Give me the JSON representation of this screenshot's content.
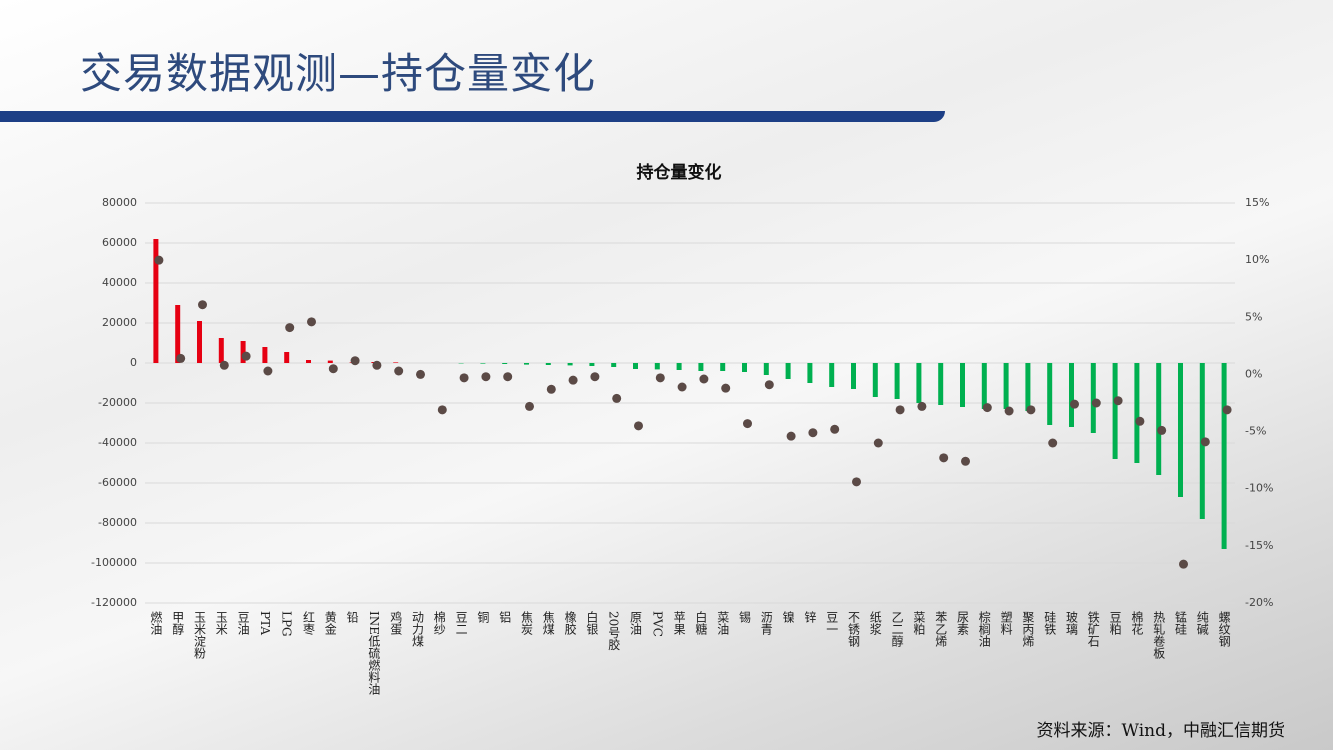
{
  "slide": {
    "title": "交易数据观测—持仓量变化",
    "source": "资料来源：Wind，中融汇信期货"
  },
  "chart_data": {
    "type": "bar",
    "title": "持仓量变化",
    "grid": true,
    "categories": [
      "燃油",
      "甲醇",
      "玉米淀粉",
      "玉米",
      "豆油",
      "PTA",
      "LPG",
      "红枣",
      "黄金",
      "铅",
      "INE低硫燃料油",
      "鸡蛋",
      "动力煤",
      "棉纱",
      "豆二",
      "铜",
      "铝",
      "焦炭",
      "焦煤",
      "橡胶",
      "白银",
      "20号胶",
      "原油",
      "PVC",
      "苹果",
      "白糖",
      "菜油",
      "锡",
      "沥青",
      "镍",
      "锌",
      "豆一",
      "不锈钢",
      "纸浆",
      "乙二醇",
      "菜粕",
      "苯乙烯",
      "尿素",
      "棕榈油",
      "塑料",
      "聚丙烯",
      "硅铁",
      "玻璃",
      "铁矿石",
      "豆粕",
      "棉花",
      "热轧卷板",
      "锰硅",
      "纯碱",
      "螺纹钢"
    ],
    "series": [
      {
        "type": "bar",
        "color": "#e60012",
        "negative_color": "#00b050",
        "values": [
          62000,
          29000,
          21000,
          12500,
          11000,
          8000,
          5500,
          1500,
          1200,
          300,
          500,
          300,
          0,
          0,
          -200,
          -300,
          -500,
          -800,
          -1000,
          -1200,
          -1500,
          -2000,
          -3000,
          -3200,
          -3500,
          -4000,
          -4000,
          -4500,
          -6000,
          -8000,
          -10000,
          -12000,
          -13000,
          -17000,
          -18000,
          -20000,
          -21000,
          -22000,
          -23000,
          -23000,
          -24000,
          -31000,
          -32000,
          -35000,
          -48000,
          -50000,
          -56000,
          -67000,
          -78000,
          -93000
        ]
      },
      {
        "type": "scatter",
        "axis": "y2",
        "color": "#5b4a46",
        "values": [
          10,
          1.4,
          6.1,
          0.8,
          1.6,
          0.3,
          4.1,
          4.6,
          0.5,
          1.2,
          0.8,
          0.3,
          0,
          -3.1,
          -0.3,
          -0.2,
          -0.2,
          -2.8,
          -1.3,
          -0.5,
          -0.2,
          -2.1,
          -4.5,
          -0.3,
          -1.1,
          -0.4,
          -1.2,
          -4.3,
          -0.9,
          -5.4,
          -5.1,
          -4.8,
          -9.4,
          -6.0,
          -3.1,
          -2.8,
          -7.3,
          -7.6,
          -2.9,
          -3.2,
          -3.1,
          -6.0,
          -2.6,
          -2.5,
          -2.3,
          -4.1,
          -4.9,
          -16.6,
          -5.9,
          -3.1
        ]
      }
    ],
    "ylim": [
      -120000,
      80000
    ],
    "yticks": [
      -120000,
      -100000,
      -80000,
      -60000,
      -40000,
      -20000,
      0,
      20000,
      40000,
      60000,
      80000
    ],
    "y2lim": [
      -20,
      15
    ],
    "y2ticks": [
      {
        "value": -20,
        "label": "-20%"
      },
      {
        "value": -15,
        "label": "-15%"
      },
      {
        "value": -10,
        "label": "-10%"
      },
      {
        "value": -5,
        "label": "-5%"
      },
      {
        "value": 0,
        "label": "0%"
      },
      {
        "value": 5,
        "label": "5%"
      },
      {
        "value": 10,
        "label": "10%"
      },
      {
        "value": 15,
        "label": "15%"
      }
    ]
  }
}
